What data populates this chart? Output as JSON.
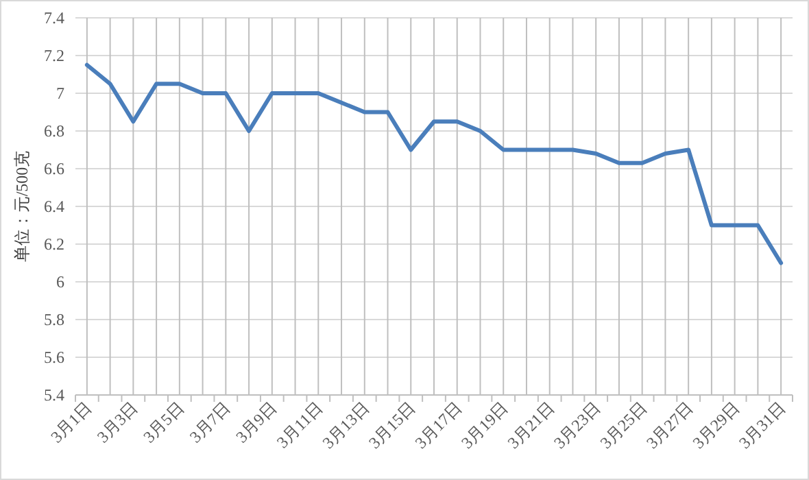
{
  "chart_data": {
    "type": "line",
    "ylabel": "单位：元/500克",
    "categories": [
      "3月1日",
      null,
      "3月3日",
      null,
      "3月5日",
      null,
      "3月7日",
      null,
      "3月9日",
      null,
      "3月11日",
      null,
      "3月13日",
      null,
      "3月15日",
      null,
      "3月17日",
      null,
      "3月19日",
      null,
      "3月21日",
      null,
      "3月23日",
      null,
      "3月25日",
      null,
      "3月27日",
      null,
      "3月29日",
      null,
      "3月31日"
    ],
    "series": [
      {
        "color": "#4a7ebb",
        "values": [
          7.15,
          7.05,
          6.85,
          7.05,
          7.05,
          7.0,
          7.0,
          6.8,
          7.0,
          7.0,
          7.0,
          6.95,
          6.9,
          6.9,
          6.7,
          6.85,
          6.85,
          6.8,
          6.7,
          6.7,
          6.7,
          6.7,
          6.68,
          6.63,
          6.63,
          6.68,
          6.7,
          6.3,
          6.3,
          6.3,
          6.1
        ]
      }
    ],
    "ylim": [
      5.4,
      7.4
    ],
    "yticks": [
      5.4,
      5.6,
      5.8,
      6,
      6.2,
      6.4,
      6.6,
      6.8,
      7,
      7.2,
      7.4
    ],
    "grid": true,
    "marker": "none",
    "line_style": "solid"
  }
}
